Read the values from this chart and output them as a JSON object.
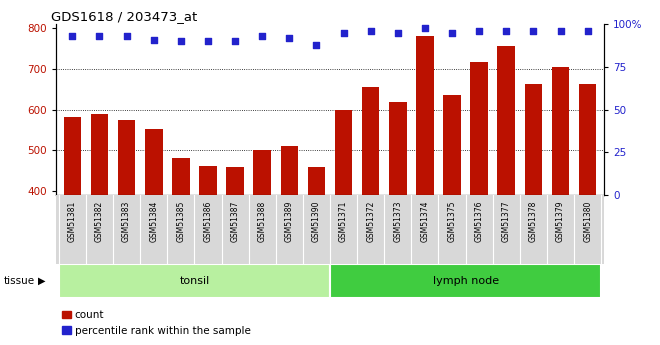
{
  "title": "GDS1618 / 203473_at",
  "categories": [
    "GSM51381",
    "GSM51382",
    "GSM51383",
    "GSM51384",
    "GSM51385",
    "GSM51386",
    "GSM51387",
    "GSM51388",
    "GSM51389",
    "GSM51390",
    "GSM51371",
    "GSM51372",
    "GSM51373",
    "GSM51374",
    "GSM51375",
    "GSM51376",
    "GSM51377",
    "GSM51378",
    "GSM51379",
    "GSM51380"
  ],
  "counts": [
    582,
    590,
    575,
    553,
    480,
    460,
    458,
    500,
    510,
    458,
    598,
    655,
    618,
    780,
    635,
    718,
    757,
    663,
    705,
    663
  ],
  "percentiles": [
    93,
    93,
    93,
    91,
    90,
    90,
    90,
    93,
    92,
    88,
    95,
    96,
    95,
    98,
    95,
    96,
    96,
    96,
    96,
    96
  ],
  "tissue_groups": [
    {
      "label": "tonsil",
      "start": 0,
      "end": 10,
      "color": "#b8f0a0"
    },
    {
      "label": "lymph node",
      "start": 10,
      "end": 20,
      "color": "#40cc40"
    }
  ],
  "ylim_left": [
    390,
    810
  ],
  "ylim_right": [
    0,
    100
  ],
  "yticks_left": [
    400,
    500,
    600,
    700,
    800
  ],
  "yticks_right": [
    0,
    25,
    50,
    75,
    100
  ],
  "bar_color": "#bb1100",
  "dot_color": "#2222cc",
  "background_color": "#ffffff",
  "grid_color": "#000000",
  "tissue_label": "tissue",
  "legend_count_label": "count",
  "legend_percentile_label": "percentile rank within the sample"
}
